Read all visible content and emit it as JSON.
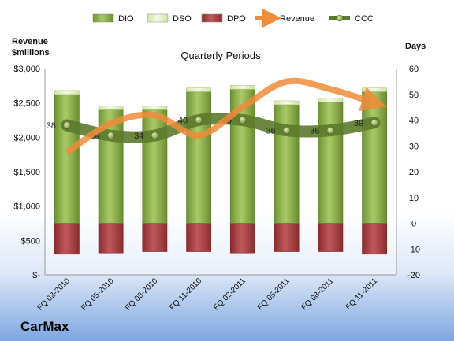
{
  "chart_data": {
    "type": "bar",
    "title": "Quarterly Periods",
    "left_axis_label_line1": "Revenue",
    "left_axis_label_line2": "$millions",
    "right_axis_label": "Days",
    "categories": [
      "FQ 02-2010",
      "FQ 05-2010",
      "FQ 08-2010",
      "FQ 11-2010",
      "FQ 02-2011",
      "FQ 05-2011",
      "FQ 08-2011",
      "FQ 11-2011"
    ],
    "left_ylim": [
      0,
      3000
    ],
    "right_ylim": [
      -20,
      60
    ],
    "left_ticks": [
      "$-",
      "$500",
      "$1,000",
      "$1,500",
      "$2,000",
      "$2,500",
      "$3,000"
    ],
    "right_ticks": [
      "-20",
      "-10",
      "0",
      "10",
      "20",
      "30",
      "40",
      "50",
      "60"
    ],
    "series": [
      {
        "name": "DIO",
        "axis": "right",
        "values": [
          50,
          44,
          44,
          51,
          52,
          46,
          47,
          51
        ],
        "color": "#8db34a"
      },
      {
        "name": "DSO",
        "axis": "right",
        "values": [
          1.5,
          1.5,
          1.5,
          1.5,
          1.5,
          1.5,
          1.5,
          1.5
        ],
        "color": "#e4efc6"
      },
      {
        "name": "DPO",
        "axis": "right",
        "values": [
          -12,
          -11.5,
          -11,
          -11,
          -11.5,
          -11,
          -11,
          -12
        ],
        "color": "#a63d40"
      },
      {
        "name": "Revenue",
        "axis": "left",
        "values": [
          1780,
          2200,
          2320,
          2030,
          2440,
          2810,
          2700,
          2500
        ],
        "color": "#f08c3a"
      },
      {
        "name": "CCC",
        "axis": "right",
        "values": [
          38,
          34,
          34,
          40,
          40,
          36,
          36,
          39
        ],
        "color": "#6e8a3a"
      }
    ],
    "legend_position": "top"
  },
  "brand": "CarMax"
}
